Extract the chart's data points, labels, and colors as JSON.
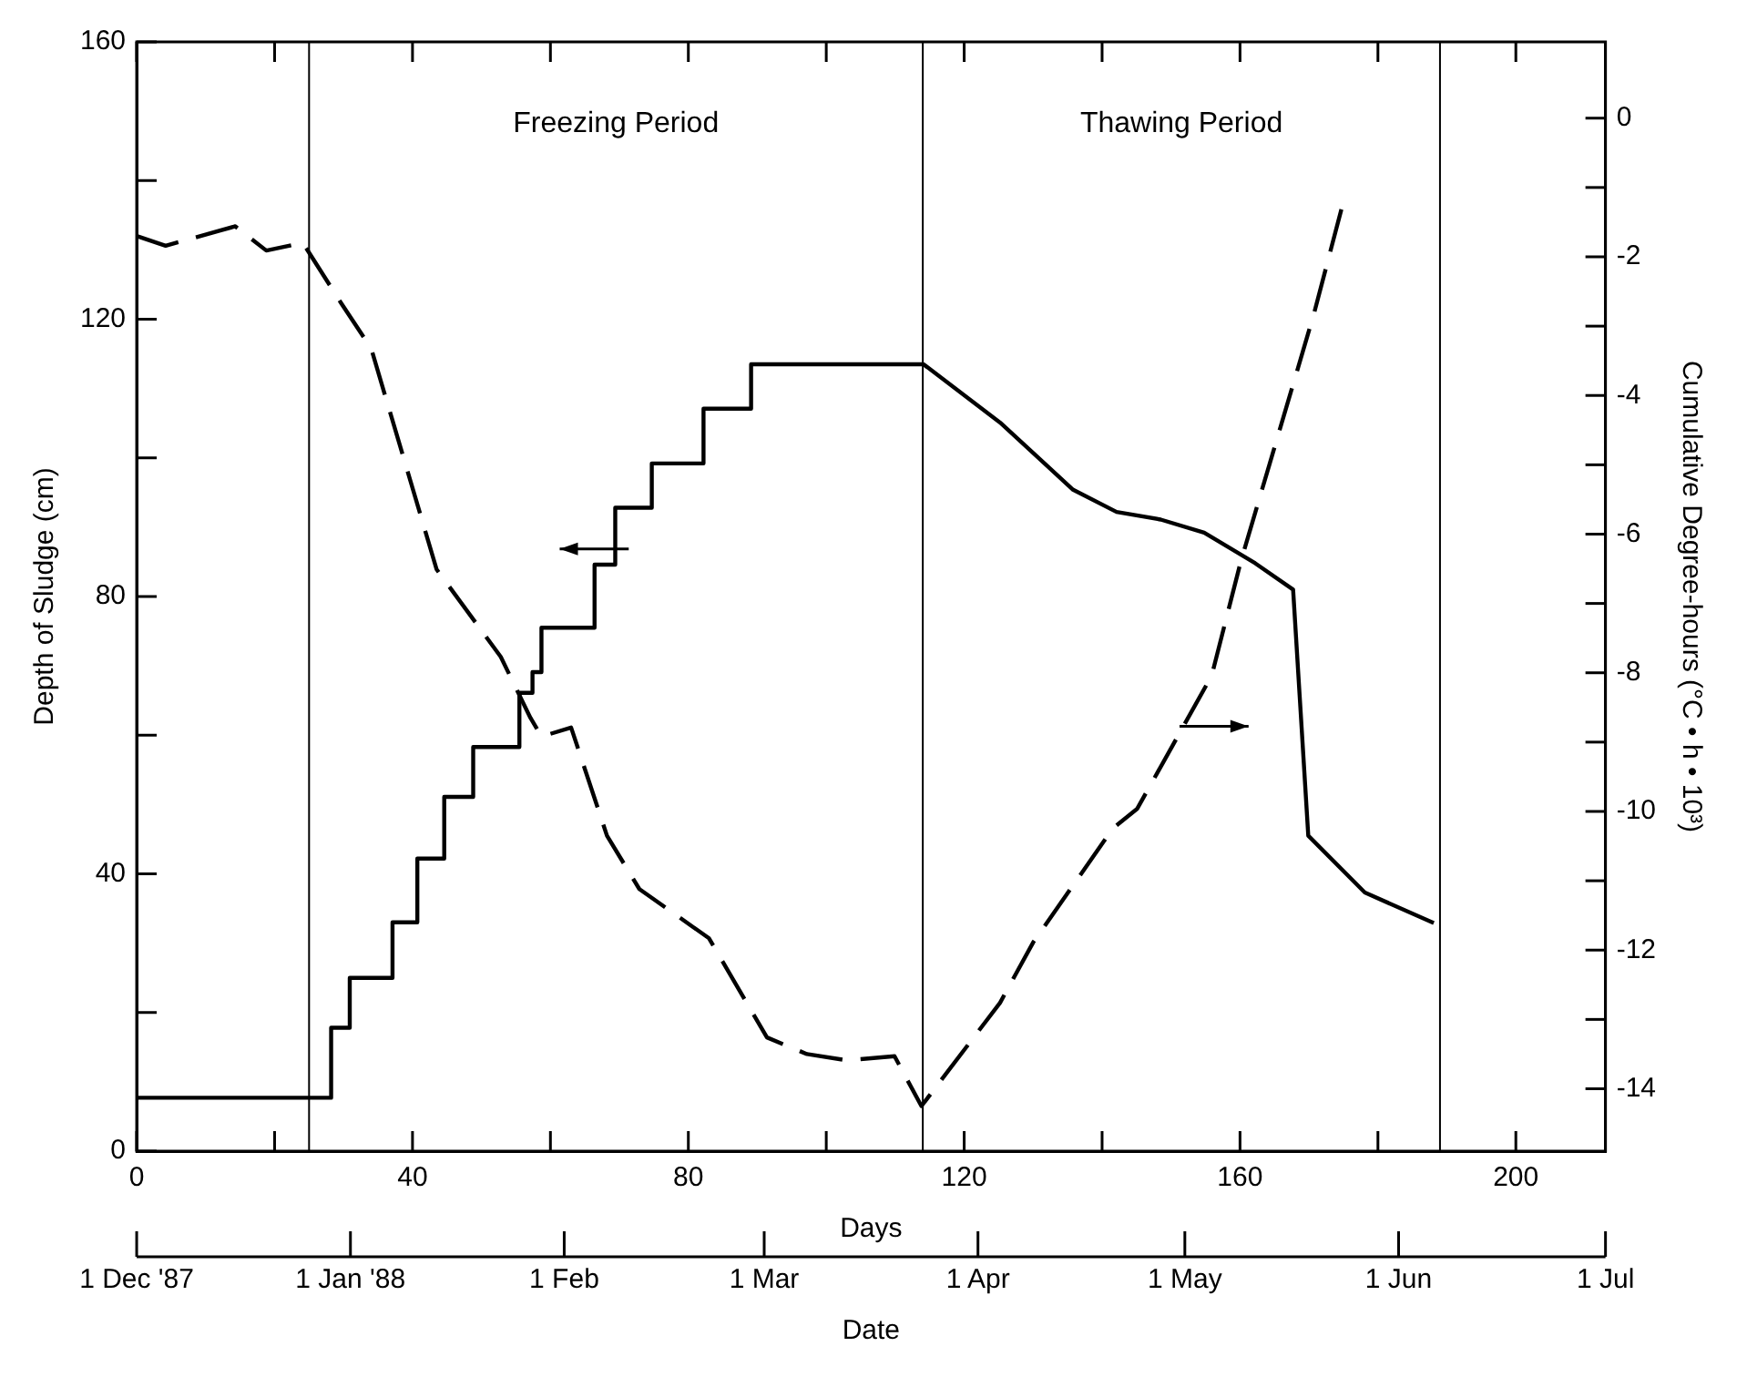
{
  "chart_data": {
    "type": "line",
    "xlabel": "Days",
    "ylabel": "Depth of Sludge (cm)",
    "y2label": "Cumulative Degree-hours (°C • h • 10³)",
    "x2label": "Date",
    "xlim": [
      0,
      213
    ],
    "xticks": [
      0,
      {
        "value": 20,
        "label": null
      },
      40,
      {
        "value": 60,
        "label": null
      },
      80,
      {
        "value": 100,
        "label": null
      },
      120,
      {
        "value": 140,
        "label": null
      },
      160,
      {
        "value": 180,
        "label": null
      },
      200
    ],
    "ylim": [
      0,
      160
    ],
    "yticks": [
      0,
      {
        "value": 20,
        "label": null
      },
      40,
      {
        "value": 60,
        "label": null
      },
      80,
      {
        "value": 100,
        "label": null
      },
      120,
      {
        "value": 140,
        "label": null
      },
      160
    ],
    "y2lim": [
      -14.9,
      1.1
    ],
    "y2ticks": [
      {
        "value": -14,
        "label": "-14"
      },
      {
        "value": -13,
        "label": null
      },
      {
        "value": -12,
        "label": "-12"
      },
      {
        "value": -11,
        "label": null
      },
      {
        "value": -10,
        "label": "-10"
      },
      {
        "value": -9,
        "label": null
      },
      {
        "value": -8,
        "label": "-8"
      },
      {
        "value": -7,
        "label": null
      },
      {
        "value": -6,
        "label": "-6"
      },
      {
        "value": -5,
        "label": null
      },
      {
        "value": -4,
        "label": "-4"
      },
      {
        "value": -3,
        "label": null
      },
      {
        "value": -2,
        "label": "-2"
      },
      {
        "value": -1,
        "label": null
      },
      0
    ],
    "x2lim": [
      "1987-12-01",
      "1988-07-01"
    ],
    "x2ticks": [
      {
        "value": "1987-12-01",
        "label": "1 Dec '87"
      },
      {
        "value": "1988-01-01",
        "label": "1 Jan '88"
      },
      {
        "value": "1988-02-01",
        "label": "1 Feb"
      },
      {
        "value": "1988-03-01",
        "label": "1 Mar"
      },
      {
        "value": "1988-04-01",
        "label": "1 Apr"
      },
      {
        "value": "1988-05-01",
        "label": "1 May"
      },
      {
        "value": "1988-06-01",
        "label": "1 Jun"
      },
      {
        "value": "1988-07-01",
        "label": "1 Jul"
      }
    ],
    "grid": false,
    "legend": false,
    "marker": "none",
    "ref_lines": [
      {
        "axis": "x",
        "value": 25,
        "color": "#000000"
      },
      {
        "axis": "x",
        "value": 114,
        "color": "#000000"
      },
      {
        "axis": "x",
        "value": 189,
        "color": "#000000"
      }
    ],
    "annotations": [
      "Freezing Period",
      "Thawing Period"
    ],
    "series": [
      {
        "color": "#000000",
        "line_style": "solid",
        "x": [
          0,
          28.2,
          28.2,
          30.9,
          30.9,
          37.1,
          37.1,
          40.7,
          40.7,
          44.6,
          44.6,
          48.8,
          48.8,
          55.5,
          55.5,
          57.4,
          57.4,
          58.7,
          58.7,
          66.4,
          66.4,
          69.4,
          69.4,
          74.7,
          74.7,
          82.2,
          82.2,
          89.1,
          89.1,
          114.1,
          125.2,
          135.8,
          142.1,
          148.5,
          154.8,
          162.2,
          167.7,
          169.9,
          178.1,
          188.1
        ],
        "values": [
          7.7,
          7.7,
          17.8,
          17.8,
          25,
          25,
          33,
          33,
          42.2,
          42.2,
          51.1,
          51.1,
          58.3,
          58.3,
          66.1,
          66.1,
          69.1,
          69.1,
          75.5,
          75.5,
          84.6,
          84.6,
          92.8,
          92.8,
          99.2,
          99.2,
          107.1,
          107.1,
          113.5,
          113.5,
          105.1,
          95.4,
          92.2,
          91.1,
          89.2,
          84.8,
          81,
          45.5,
          37.3,
          32.9
        ]
      },
      {
        "color": "#000000",
        "line_style": "dashed",
        "axis": "y2",
        "x": [
          0,
          4.2,
          14.3,
          18.8,
          24.1,
          29.6,
          34,
          43.5,
          52.8,
          57.1,
          58.7,
          63,
          68.2,
          72.9,
          83,
          91.4,
          97.2,
          103,
          109.9,
          113.8,
          125.2,
          130,
          141.6,
          145.1,
          155.9,
          160.1,
          170.7,
          174.9
        ],
        "values": [
          -1.7,
          -1.84,
          -1.56,
          -1.91,
          -1.8,
          -2.66,
          -3.32,
          -6.51,
          -7.77,
          -8.65,
          -8.92,
          -8.79,
          -10.35,
          -11.12,
          -11.83,
          -13.26,
          -13.5,
          -13.59,
          -13.53,
          -14.25,
          -12.76,
          -11.89,
          -10.24,
          -9.96,
          -8.04,
          -6.4,
          -2.83,
          -1.24
        ]
      }
    ]
  }
}
